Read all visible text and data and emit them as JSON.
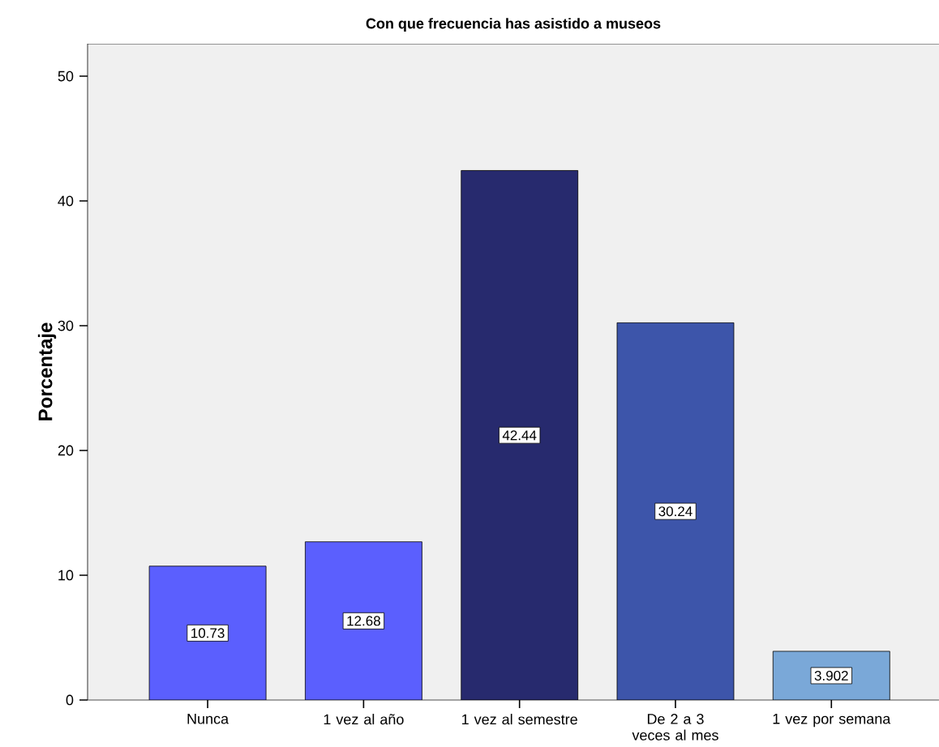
{
  "chart_data": {
    "type": "bar",
    "title": "Con que frecuencia has asistido a museos",
    "ylabel": "Porcentaje",
    "categories": [
      "Nunca",
      "1 vez al año",
      "1 vez al semestre",
      "De 2 a 3 veces al mes",
      "1 vez por semana"
    ],
    "values": [
      10.73,
      12.68,
      42.44,
      30.24,
      3.902
    ],
    "colors": [
      "#5b5ffe",
      "#5b5ffe",
      "#272a6e",
      "#3d55aa",
      "#7aa8d8"
    ],
    "data_labels": true,
    "ylim": [
      0,
      52.6
    ],
    "yticks": [
      0,
      10,
      20,
      30,
      40,
      50
    ]
  }
}
